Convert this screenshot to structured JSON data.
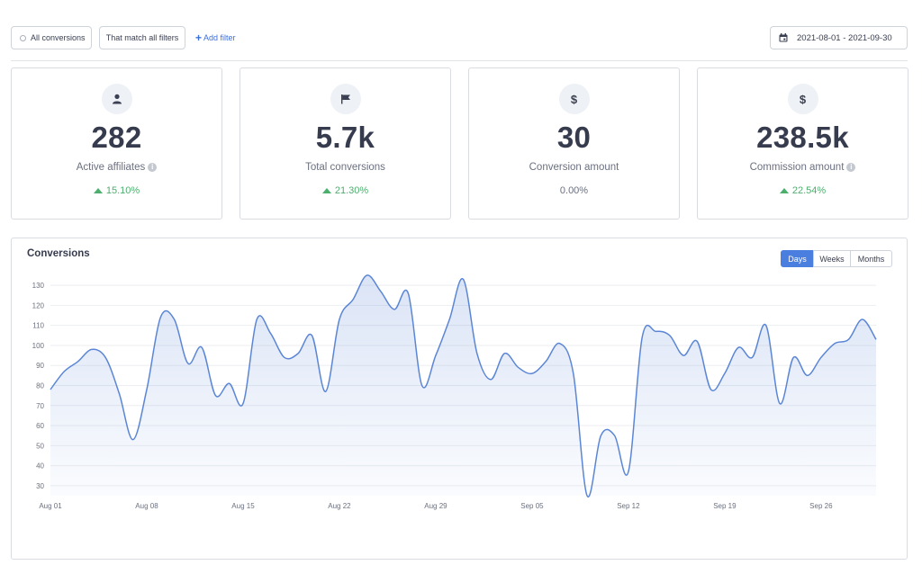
{
  "filters": {
    "conversions_scope": "All conversions",
    "match_mode": "That match all filters",
    "add_filter": "Add filter"
  },
  "date_range": "2021-08-01 - 2021-09-30",
  "stats": [
    {
      "icon": "user-icon",
      "value": "282",
      "label": "Active affiliates",
      "info": true,
      "change": "15.10%",
      "trend": "up"
    },
    {
      "icon": "flag-icon",
      "value": "5.7k",
      "label": "Total conversions",
      "info": false,
      "change": "21.30%",
      "trend": "up"
    },
    {
      "icon": "dollar-icon",
      "value": "30",
      "label": "Conversion amount",
      "info": false,
      "change": "0.00%",
      "trend": "neutral"
    },
    {
      "icon": "dollar-icon",
      "value": "238.5k",
      "label": "Commission amount",
      "info": true,
      "change": "22.54%",
      "trend": "up"
    }
  ],
  "chart_panel": {
    "title": "Conversions",
    "periods": [
      "Days",
      "Weeks",
      "Months"
    ],
    "active_period": "Days"
  },
  "colors": {
    "accent": "#4a7fe0",
    "line": "#5b86d6",
    "area": "#e8edf9",
    "positive": "#4caf6e"
  },
  "chart_data": {
    "type": "area",
    "title": "Conversions",
    "xlabel": "",
    "ylabel": "",
    "ylim": [
      25,
      135
    ],
    "y_ticks": [
      30,
      40,
      50,
      60,
      70,
      80,
      90,
      100,
      110,
      120,
      130
    ],
    "x_tick_labels": [
      "Aug 01",
      "Aug 08",
      "Aug 15",
      "Aug 22",
      "Aug 29",
      "Sep 05",
      "Sep 12",
      "Sep 19",
      "Sep 26"
    ],
    "grid": true,
    "x": [
      "2021-08-01",
      "2021-08-02",
      "2021-08-03",
      "2021-08-04",
      "2021-08-05",
      "2021-08-06",
      "2021-08-07",
      "2021-08-08",
      "2021-08-09",
      "2021-08-10",
      "2021-08-11",
      "2021-08-12",
      "2021-08-13",
      "2021-08-14",
      "2021-08-15",
      "2021-08-16",
      "2021-08-17",
      "2021-08-18",
      "2021-08-19",
      "2021-08-20",
      "2021-08-21",
      "2021-08-22",
      "2021-08-23",
      "2021-08-24",
      "2021-08-25",
      "2021-08-26",
      "2021-08-27",
      "2021-08-28",
      "2021-08-29",
      "2021-08-30",
      "2021-08-31",
      "2021-09-01",
      "2021-09-02",
      "2021-09-03",
      "2021-09-04",
      "2021-09-05",
      "2021-09-06",
      "2021-09-07",
      "2021-09-08",
      "2021-09-09",
      "2021-09-10",
      "2021-09-11",
      "2021-09-12",
      "2021-09-13",
      "2021-09-14",
      "2021-09-15",
      "2021-09-16",
      "2021-09-17",
      "2021-09-18",
      "2021-09-19",
      "2021-09-20",
      "2021-09-21",
      "2021-09-22",
      "2021-09-23",
      "2021-09-24",
      "2021-09-25",
      "2021-09-26",
      "2021-09-27",
      "2021-09-28",
      "2021-09-29",
      "2021-09-30"
    ],
    "series": [
      {
        "values": [
          78,
          87,
          92,
          98,
          94,
          76,
          53,
          78,
          114,
          113,
          91,
          99,
          75,
          81,
          71,
          113,
          106,
          94,
          96,
          105,
          77,
          113,
          123,
          135,
          127,
          118,
          126,
          80,
          95,
          113,
          133,
          96,
          83,
          96,
          89,
          86,
          92,
          101,
          86,
          25,
          55,
          55,
          37,
          104,
          107,
          105,
          95,
          102,
          78,
          86,
          99,
          94,
          110,
          71,
          94,
          85,
          94,
          101,
          103,
          113,
          103
        ]
      }
    ]
  }
}
